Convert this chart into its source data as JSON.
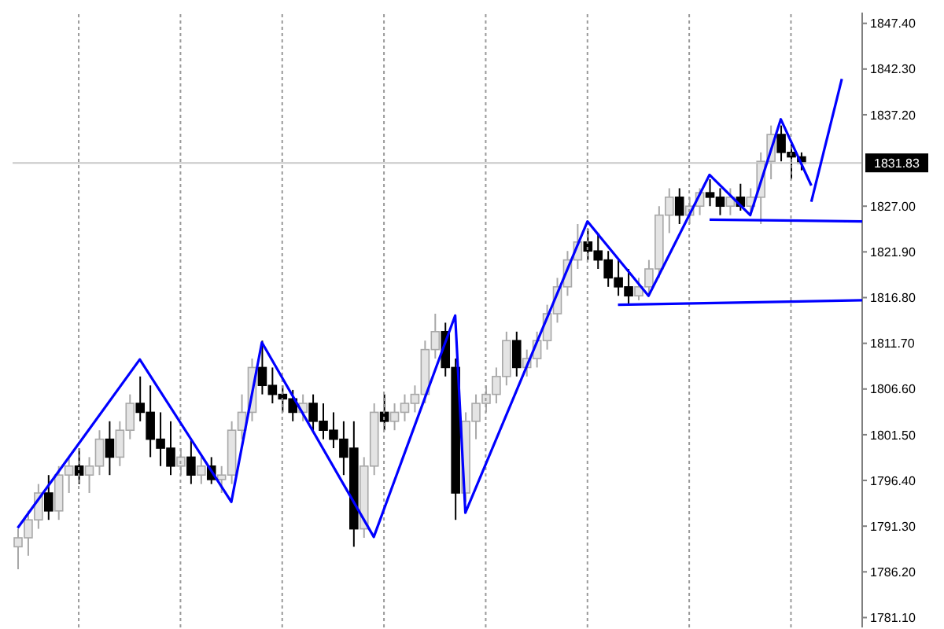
{
  "chart_data": {
    "type": "candlestick",
    "categories": [
      null,
      null,
      null,
      null,
      null,
      null,
      null,
      null,
      null,
      null,
      null,
      null,
      null,
      null,
      null,
      null,
      null,
      null,
      null,
      null,
      null,
      null,
      null,
      null,
      null,
      null,
      null,
      null,
      null,
      null,
      null,
      null,
      null,
      null,
      null,
      null,
      null,
      null,
      null,
      null,
      null,
      null,
      null,
      null,
      null,
      null,
      null,
      null,
      null,
      null,
      null,
      null,
      null,
      null,
      null,
      null,
      null,
      null,
      null,
      null,
      null,
      null,
      null,
      null,
      null,
      null,
      null,
      null,
      null,
      null,
      null,
      null,
      null,
      null,
      null,
      null,
      null,
      null,
      null,
      null,
      null,
      null,
      null,
      null
    ],
    "ohlc": [
      [
        1789,
        1791,
        1786.5,
        1790
      ],
      [
        1790,
        1793,
        1788,
        1792
      ],
      [
        1792,
        1796,
        1791,
        1795
      ],
      [
        1795,
        1797,
        1792,
        1793
      ],
      [
        1793,
        1798,
        1792,
        1797
      ],
      [
        1797,
        1799,
        1795,
        1798
      ],
      [
        1798,
        1800,
        1796,
        1797
      ],
      [
        1797,
        1799,
        1795,
        1798
      ],
      [
        1798,
        1802,
        1797,
        1801
      ],
      [
        1801,
        1803,
        1797,
        1799
      ],
      [
        1799,
        1803,
        1798,
        1802
      ],
      [
        1802,
        1806,
        1801,
        1805
      ],
      [
        1805,
        1808,
        1803,
        1804
      ],
      [
        1804,
        1807,
        1799,
        1801
      ],
      [
        1801,
        1804,
        1798,
        1800
      ],
      [
        1800,
        1803,
        1797,
        1798
      ],
      [
        1798,
        1800,
        1797,
        1799
      ],
      [
        1799,
        1801,
        1796,
        1797
      ],
      [
        1797,
        1799,
        1796,
        1798
      ],
      [
        1798,
        1799,
        1796,
        1796.5
      ],
      [
        1796.5,
        1798,
        1795,
        1797
      ],
      [
        1797,
        1803,
        1796,
        1802
      ],
      [
        1802,
        1806,
        1801,
        1804
      ],
      [
        1804,
        1810,
        1803,
        1809
      ],
      [
        1809,
        1812,
        1806,
        1807
      ],
      [
        1807,
        1809,
        1805,
        1806
      ],
      [
        1806,
        1807,
        1804,
        1805.5
      ],
      [
        1805.5,
        1806.5,
        1803,
        1804
      ],
      [
        1804,
        1806,
        1803,
        1805
      ],
      [
        1805,
        1806,
        1802,
        1803
      ],
      [
        1803,
        1805,
        1801,
        1802
      ],
      [
        1802,
        1804,
        1800,
        1801
      ],
      [
        1801,
        1803,
        1797,
        1799
      ],
      [
        1800,
        1803,
        1789,
        1791
      ],
      [
        1791,
        1799,
        1790,
        1798
      ],
      [
        1798,
        1805,
        1797,
        1804
      ],
      [
        1804,
        1806,
        1802,
        1803
      ],
      [
        1803,
        1805,
        1802,
        1804
      ],
      [
        1804,
        1806,
        1803,
        1805
      ],
      [
        1805,
        1807,
        1804,
        1806
      ],
      [
        1806,
        1812,
        1805,
        1811
      ],
      [
        1811,
        1815,
        1810,
        1813
      ],
      [
        1813,
        1814,
        1808,
        1809
      ],
      [
        1809,
        1810,
        1792,
        1795
      ],
      [
        1795,
        1804,
        1794,
        1803
      ],
      [
        1803,
        1806,
        1801,
        1805
      ],
      [
        1805,
        1807,
        1804,
        1806
      ],
      [
        1806,
        1809,
        1805,
        1808
      ],
      [
        1808,
        1813,
        1807,
        1812
      ],
      [
        1812,
        1813,
        1808,
        1809
      ],
      [
        1809,
        1811,
        1808,
        1810
      ],
      [
        1810,
        1813,
        1809,
        1812
      ],
      [
        1812,
        1816,
        1811,
        1815
      ],
      [
        1815,
        1819,
        1814,
        1818
      ],
      [
        1818,
        1822,
        1817,
        1821
      ],
      [
        1821,
        1825,
        1820,
        1823
      ],
      [
        1823,
        1824.5,
        1821,
        1822
      ],
      [
        1822,
        1824,
        1820,
        1821
      ],
      [
        1821,
        1822,
        1818,
        1819
      ],
      [
        1819,
        1821,
        1817,
        1818
      ],
      [
        1818,
        1820,
        1816,
        1817
      ],
      [
        1817,
        1819,
        1816.5,
        1818
      ],
      [
        1818,
        1821,
        1817,
        1820
      ],
      [
        1820,
        1827,
        1819,
        1826
      ],
      [
        1826,
        1829,
        1824,
        1828
      ],
      [
        1828,
        1829,
        1825,
        1826
      ],
      [
        1826,
        1828,
        1825,
        1827
      ],
      [
        1827,
        1829,
        1826,
        1828.5
      ],
      [
        1828.5,
        1830,
        1827,
        1828
      ],
      [
        1828,
        1829,
        1826,
        1827
      ],
      [
        1827,
        1829,
        1826,
        1828
      ],
      [
        1828,
        1829.5,
        1826.5,
        1827
      ],
      [
        1827,
        1829,
        1826,
        1828
      ],
      [
        1828,
        1833,
        1825,
        1832
      ],
      [
        1832,
        1836,
        1830,
        1835
      ],
      [
        1835,
        1836,
        1832,
        1833
      ],
      [
        1833,
        1834,
        1830,
        1832.5
      ],
      [
        1832.5,
        1833,
        1831,
        1831.8
      ],
      null,
      null,
      null,
      null,
      null,
      null
    ],
    "series": [
      {
        "type": "line",
        "color": "#0000ff",
        "values": [
          1791.1,
          null,
          null,
          null,
          null,
          null,
          null,
          null,
          null,
          null,
          null,
          null,
          1809.9,
          null,
          null,
          null,
          null,
          null,
          null,
          null,
          null,
          1794,
          null,
          null,
          1811.8,
          null,
          null,
          null,
          null,
          null,
          null,
          null,
          null,
          null,
          null,
          1790.1,
          null,
          null,
          null,
          null,
          null,
          null,
          null,
          1814.8,
          1792.8,
          null,
          null,
          null,
          null,
          null,
          null,
          null,
          null,
          null,
          null,
          null,
          1825.3,
          null,
          null,
          null,
          null,
          null,
          1817,
          null,
          null,
          null,
          null,
          null,
          1830.5,
          null,
          null,
          null,
          1826,
          null,
          null,
          1836.7,
          null,
          null,
          1829.3,
          null,
          null,
          null,
          null,
          null
        ]
      },
      {
        "type": "line",
        "color": "#0000ff",
        "values": [
          null,
          null,
          null,
          null,
          null,
          null,
          null,
          null,
          null,
          null,
          null,
          null,
          null,
          null,
          null,
          null,
          null,
          null,
          null,
          null,
          null,
          null,
          null,
          null,
          null,
          null,
          null,
          null,
          null,
          null,
          null,
          null,
          null,
          null,
          null,
          null,
          null,
          null,
          null,
          null,
          null,
          null,
          null,
          null,
          null,
          null,
          null,
          null,
          null,
          null,
          null,
          null,
          null,
          null,
          null,
          null,
          null,
          null,
          null,
          null,
          null,
          null,
          null,
          null,
          null,
          null,
          null,
          null,
          null,
          null,
          null,
          null,
          null,
          null,
          null,
          null,
          null,
          null,
          1827.5,
          null,
          null,
          1841.2,
          null,
          null
        ]
      },
      {
        "type": "line",
        "color": "#0000ff",
        "values": [
          null,
          null,
          null,
          null,
          null,
          null,
          null,
          null,
          null,
          null,
          null,
          null,
          null,
          null,
          null,
          null,
          null,
          null,
          null,
          null,
          null,
          null,
          null,
          null,
          null,
          null,
          null,
          null,
          null,
          null,
          null,
          null,
          null,
          null,
          null,
          null,
          null,
          null,
          null,
          null,
          null,
          null,
          null,
          null,
          null,
          null,
          null,
          null,
          null,
          null,
          null,
          null,
          null,
          null,
          null,
          null,
          null,
          null,
          null,
          1816,
          null,
          null,
          null,
          null,
          null,
          null,
          null,
          null,
          null,
          null,
          null,
          null,
          null,
          null,
          null,
          null,
          null,
          null,
          null,
          null,
          null,
          null,
          null,
          1816.5
        ]
      },
      {
        "type": "line",
        "color": "#0000ff",
        "values": [
          null,
          null,
          null,
          null,
          null,
          null,
          null,
          null,
          null,
          null,
          null,
          null,
          null,
          null,
          null,
          null,
          null,
          null,
          null,
          null,
          null,
          null,
          null,
          null,
          null,
          null,
          null,
          null,
          null,
          null,
          null,
          null,
          null,
          null,
          null,
          null,
          null,
          null,
          null,
          null,
          null,
          null,
          null,
          null,
          null,
          null,
          null,
          null,
          null,
          null,
          null,
          null,
          null,
          null,
          null,
          null,
          null,
          null,
          null,
          null,
          null,
          null,
          null,
          null,
          null,
          null,
          null,
          null,
          1825.5,
          null,
          null,
          null,
          null,
          null,
          null,
          null,
          null,
          null,
          null,
          null,
          null,
          null,
          null,
          1825.3
        ]
      }
    ],
    "ylim": [
      1780,
      1848.6
    ],
    "yticks": [
      {
        "value": 1781.1,
        "label": "1781.10"
      },
      {
        "value": 1786.2,
        "label": "1786.20"
      },
      {
        "value": 1791.3,
        "label": "1791.30"
      },
      {
        "value": 1796.4,
        "label": "1796.40"
      },
      {
        "value": 1801.5,
        "label": "1801.50"
      },
      {
        "value": 1806.6,
        "label": "1806.60"
      },
      {
        "value": 1811.7,
        "label": "1811.70"
      },
      {
        "value": 1816.8,
        "label": "1816.80"
      },
      {
        "value": 1821.9,
        "label": "1821.90"
      },
      {
        "value": 1827,
        "label": "1827.00"
      },
      {
        "value": 1837.2,
        "label": "1837.20"
      },
      {
        "value": 1842.3,
        "label": "1842.30"
      },
      {
        "value": 1847.4,
        "label": "1847.40"
      }
    ],
    "ref_lines": [
      {
        "axis": "y",
        "value": 1831.83,
        "label": "1831.83",
        "color": "#c8c8c8"
      }
    ],
    "grid": "x",
    "tick_labels": "y",
    "marker": "none",
    "line_style": "solid"
  }
}
